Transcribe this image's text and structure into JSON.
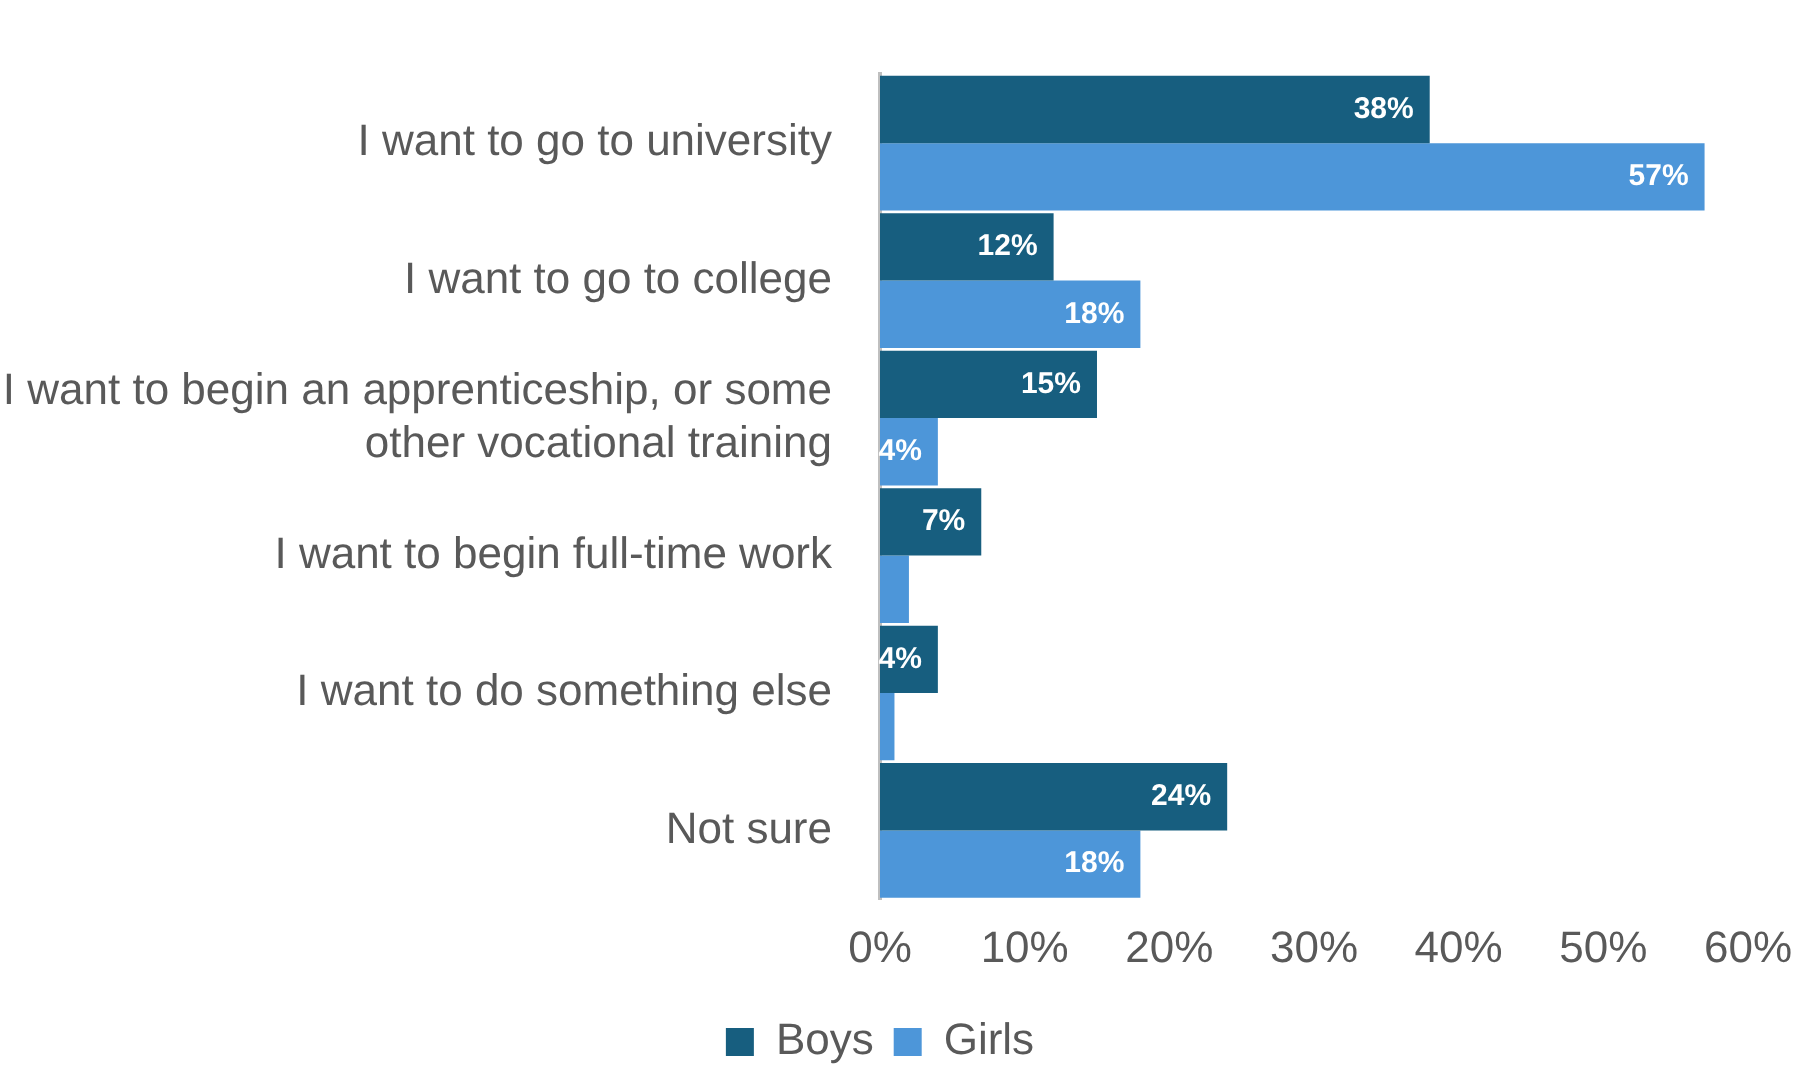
{
  "chart_data": {
    "type": "bar",
    "orientation": "horizontal",
    "categories": [
      "I want to go to university",
      "I want to go to college",
      "I want to begin an apprenticeship, or some other vocational training",
      "I want to begin full-time work",
      "I want to do something else",
      "Not sure"
    ],
    "series": [
      {
        "name": "Boys",
        "color": "#175e7f",
        "values": [
          38,
          12,
          15,
          7,
          4,
          24
        ],
        "value_labels": [
          "38%",
          "12%",
          "15%",
          "7%",
          "4%",
          "24%"
        ]
      },
      {
        "name": "Girls",
        "color": "#4d96d9",
        "values": [
          57,
          18,
          4,
          2,
          1,
          18
        ],
        "value_labels": [
          "57%",
          "18%",
          "4%",
          null,
          null,
          "18%"
        ]
      }
    ],
    "xlim": [
      0,
      60
    ],
    "xticks": [
      {
        "value": 0,
        "label": "0%"
      },
      {
        "value": 10,
        "label": "10%"
      },
      {
        "value": 20,
        "label": "20%"
      },
      {
        "value": 30,
        "label": "30%"
      },
      {
        "value": 40,
        "label": "40%"
      },
      {
        "value": 50,
        "label": "50%"
      },
      {
        "value": 60,
        "label": "60%"
      }
    ],
    "grid": false,
    "legend": "bottom"
  }
}
